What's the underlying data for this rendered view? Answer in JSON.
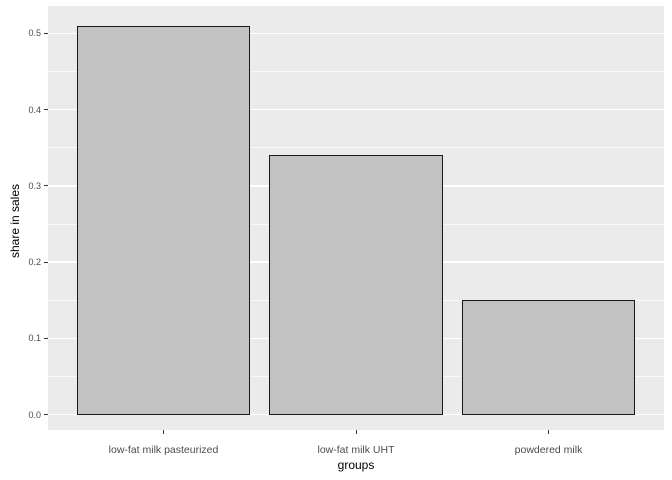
{
  "chart_data": {
    "type": "bar",
    "title": "",
    "categories": [
      "low-fat milk pasteurized",
      "low-fat milk UHT",
      "powdered milk"
    ],
    "values": [
      0.51,
      0.34,
      0.15
    ],
    "xlabel": "groups",
    "ylabel": "share in sales",
    "ylim": [
      -0.02,
      0.536
    ],
    "yticks": [
      0.0,
      0.1,
      0.2,
      0.3,
      0.4,
      0.5
    ],
    "ytick_labels": [
      "0.0",
      "0.1",
      "0.2",
      "0.3",
      "0.4",
      "0.5"
    ],
    "yticks_minor": [
      0.05,
      0.15,
      0.25,
      0.35,
      0.45
    ],
    "grid": "major and minor horizontal white gridlines on gray panel",
    "legend_position": "none",
    "colors": {
      "outer_background": "#FFFFFF",
      "panel_background": "#EBEBEB",
      "gridline": "#FFFFFF",
      "bar_fill": "#C2C2C2",
      "bar_border": "#1A1A1A",
      "tick_label": "#4D4D4D",
      "axis_title": "#000000",
      "tick_mark": "#333333"
    }
  }
}
